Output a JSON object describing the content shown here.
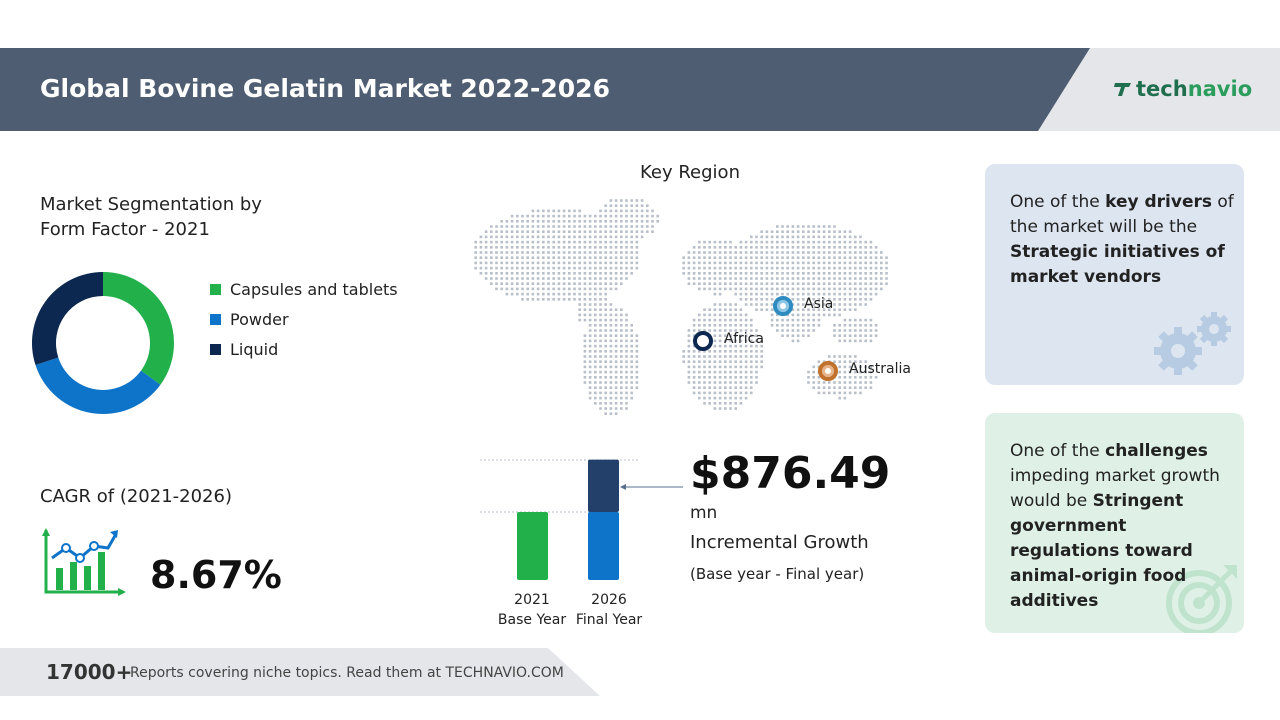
{
  "header": {
    "title": "Global Bovine Gelatin Market 2022-2026",
    "logo_part1": "tech",
    "logo_part2": "navio",
    "bg_color": "#4e5d71"
  },
  "segmentation": {
    "title_line1": "Market Segmentation by",
    "title_line2": "Form Factor - 2021"
  },
  "chart_data": [
    {
      "type": "pie",
      "subtype": "donut",
      "title": "Market Segmentation by Form Factor - 2021",
      "labels": [
        "Capsules and tablets",
        "Powder",
        "Liquid"
      ],
      "values": [
        35,
        35,
        30
      ],
      "colors": [
        "#22b04b",
        "#0e74c9",
        "#0c2850"
      ]
    },
    {
      "type": "bar",
      "stacked": true,
      "categories": [
        "2021",
        "2026"
      ],
      "category_sublabels": [
        "Base Year",
        "Final Year"
      ],
      "series": [
        {
          "values": [
            1,
            1
          ],
          "colors": [
            "#22b04b",
            "#0e74c9"
          ]
        },
        {
          "values": [
            0,
            0.77
          ],
          "color": "#22406a"
        }
      ]
    }
  ],
  "cagr": {
    "label": "CAGR of (2021-2026)",
    "value": "8.67%"
  },
  "regions": {
    "title": "Key Region",
    "items": [
      {
        "label": "Asia",
        "color": "#2e8bc0"
      },
      {
        "label": "Africa",
        "color": "#0c2850"
      },
      {
        "label": "Australia",
        "color": "#c0712b"
      }
    ]
  },
  "growth": {
    "value": "$876.49",
    "unit": "mn",
    "label": "Incremental Growth",
    "sub": "(Base year - Final year)"
  },
  "drivers": {
    "pre": "One of the ",
    "bold1": "key drivers",
    "mid": " of the market will be the ",
    "bold2": "Strategic initiatives of market vendors"
  },
  "challenges": {
    "pre": "One of the ",
    "bold1": "challenges",
    "mid": " impeding market growth would be ",
    "bold2": "Stringent government regulations toward animal-origin food additives"
  },
  "footer": {
    "count": "17000+",
    "text": "Reports covering niche topics. Read them at TECHNAVIO.COM"
  }
}
